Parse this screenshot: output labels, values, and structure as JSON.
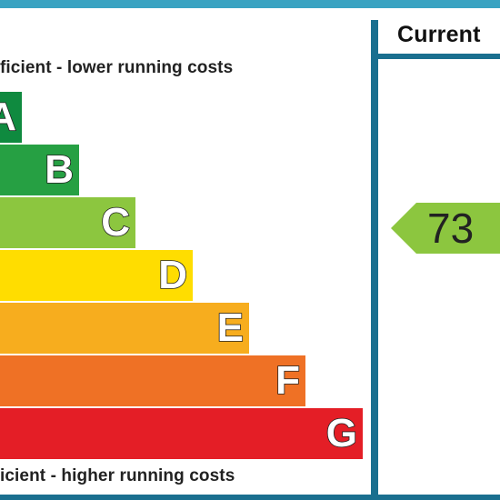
{
  "header": {
    "current_label": "Current"
  },
  "captions": {
    "top": "ficient - lower running costs",
    "bottom": "icient - higher running costs"
  },
  "bands": [
    {
      "letter": "A",
      "color": "#0f8a3f"
    },
    {
      "letter": "B",
      "color": "#26a043"
    },
    {
      "letter": "C",
      "color": "#8cc63f"
    },
    {
      "letter": "D",
      "color": "#ffdd00"
    },
    {
      "letter": "E",
      "color": "#f7ad1e"
    },
    {
      "letter": "F",
      "color": "#ef7125"
    },
    {
      "letter": "G",
      "color": "#e41e26"
    }
  ],
  "current": {
    "value": "73",
    "band": "C",
    "color": "#8cc63f"
  }
}
